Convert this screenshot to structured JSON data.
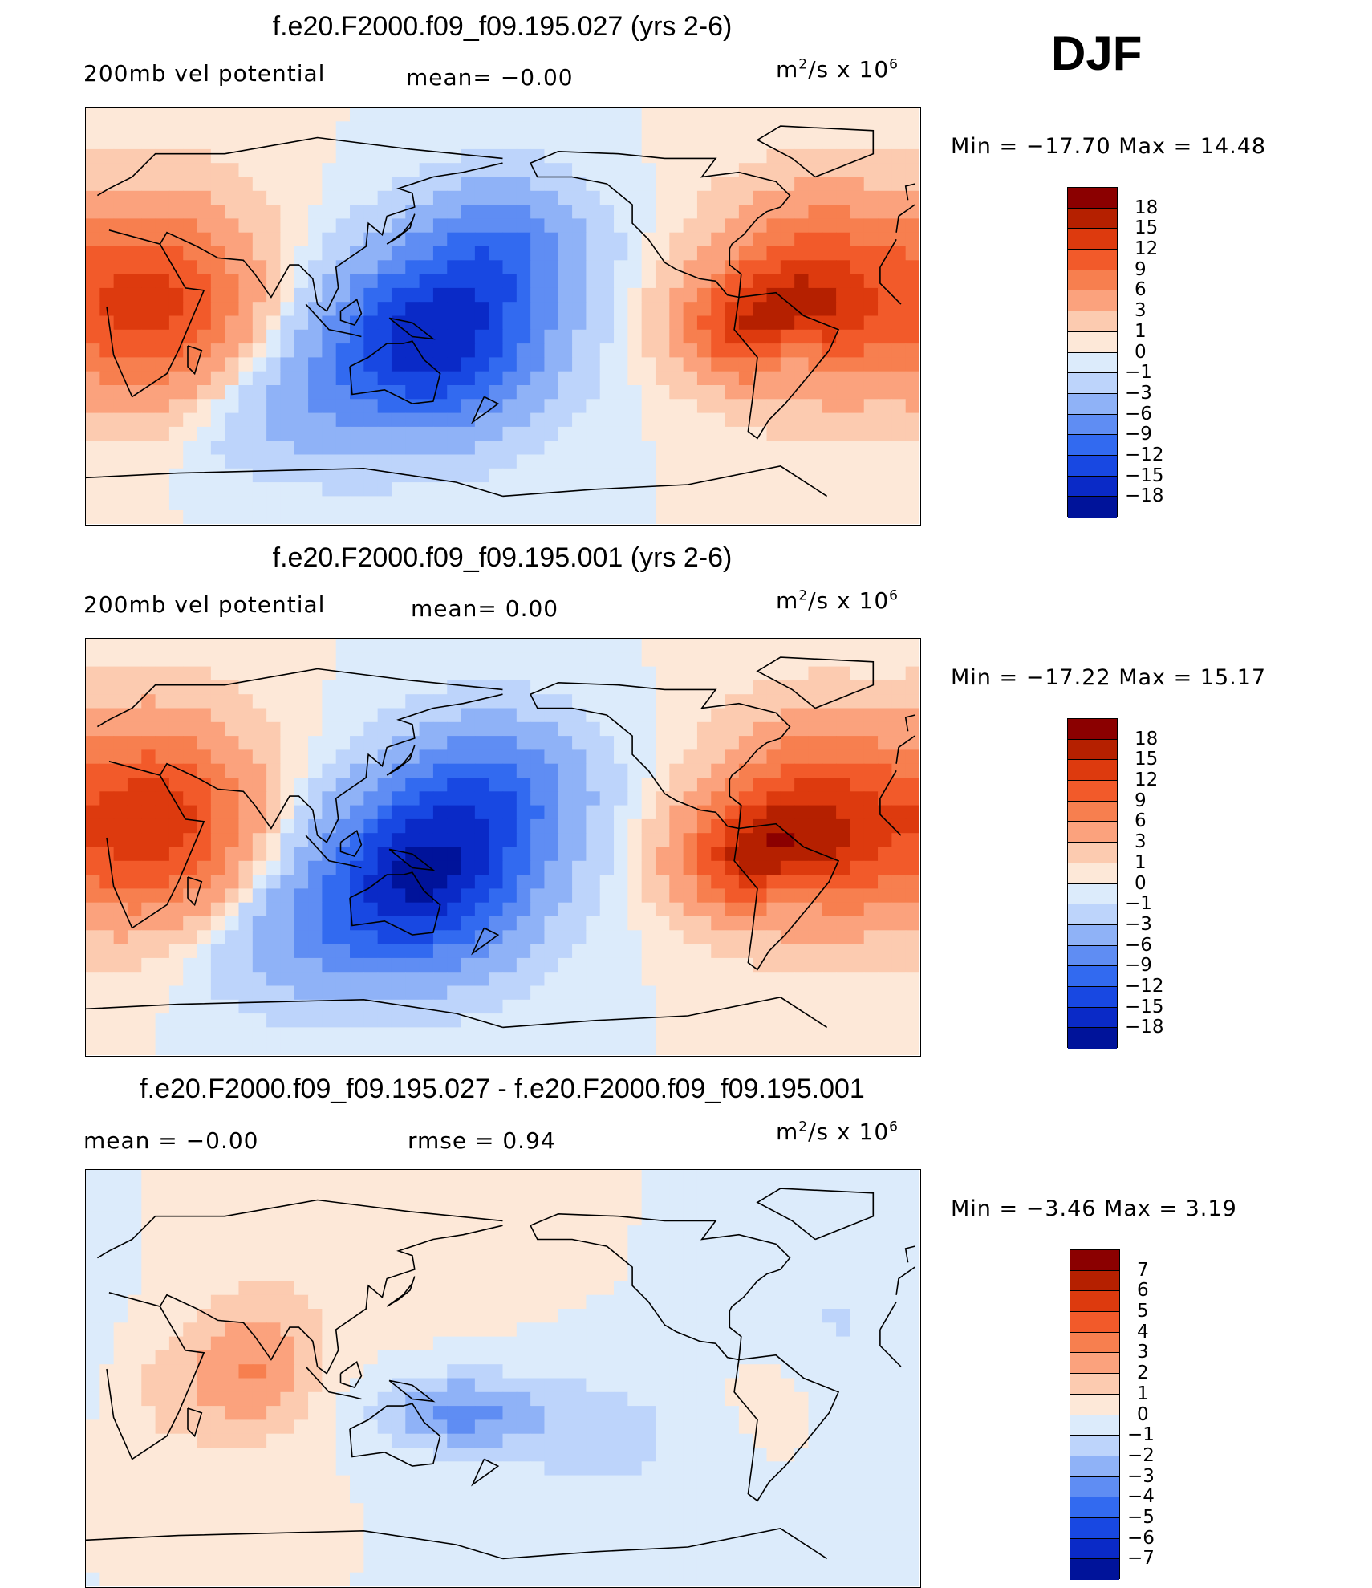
{
  "season": "DJF",
  "panels": [
    {
      "title": "f.e20.F2000.f09_f09.195.027 (yrs 2-6)",
      "left_label": "200mb  vel  potential",
      "center_label": "mean=   −0.00",
      "units_base": "m",
      "units_sup1": "2",
      "units_mid": "/s  x  10",
      "units_sup2": "6",
      "minmax": "Min  =  −17.70  Max  =    14.48",
      "colorbar": {
        "labels": [
          "18",
          "15",
          "12",
          "9",
          "6",
          "3",
          "1",
          "0",
          "−1",
          "−3",
          "−6",
          "−9",
          "−12",
          "−15",
          "−18"
        ],
        "colors": [
          "#8b0000",
          "#b52000",
          "#dd3a0e",
          "#f25a2a",
          "#f77f4f",
          "#fba27d",
          "#fccbb0",
          "#fde8d8",
          "#dcebfb",
          "#bdd4fb",
          "#8fb2f7",
          "#5f8df3",
          "#326af0",
          "#1848e2",
          "#0a2ac7",
          "#00139a"
        ]
      },
      "field": [
        {
          "lon": 30,
          "lat": 5,
          "amp": 13,
          "sx": 30,
          "sy": 30
        },
        {
          "lon": -45,
          "lat": 10,
          "amp": 13,
          "sx": 28,
          "sy": 28
        },
        {
          "lon": -75,
          "lat": -5,
          "amp": 9,
          "sx": 22,
          "sy": 16
        },
        {
          "lon": 150,
          "lat": -10,
          "amp": -17,
          "sx": 32,
          "sy": 25
        },
        {
          "lon": 180,
          "lat": 30,
          "amp": -8,
          "sx": 25,
          "sy": 20
        },
        {
          "lon": -55,
          "lat": -18,
          "amp": -6,
          "sx": 10,
          "sy": 10
        },
        {
          "lon": 90,
          "lat": -40,
          "amp": -4,
          "sx": 40,
          "sy": 20
        }
      ]
    },
    {
      "title": "f.e20.F2000.f09_f09.195.001 (yrs 2-6)",
      "left_label": "200mb  vel  potential",
      "center_label": "mean=    0.00",
      "units_base": "m",
      "units_sup1": "2",
      "units_mid": "/s  x  10",
      "units_sup2": "6",
      "minmax": "Min  =  −17.22  Max  =    15.17",
      "colorbar": {
        "labels": [
          "18",
          "15",
          "12",
          "9",
          "6",
          "3",
          "1",
          "0",
          "−1",
          "−3",
          "−6",
          "−9",
          "−12",
          "−15",
          "−18"
        ],
        "colors": [
          "#8b0000",
          "#b52000",
          "#dd3a0e",
          "#f25a2a",
          "#f77f4f",
          "#fba27d",
          "#fccbb0",
          "#fde8d8",
          "#dcebfb",
          "#bdd4fb",
          "#8fb2f7",
          "#5f8df3",
          "#326af0",
          "#1848e2",
          "#0a2ac7",
          "#00139a"
        ]
      },
      "field": [
        {
          "lon": 30,
          "lat": 10,
          "amp": 14,
          "sx": 30,
          "sy": 30
        },
        {
          "lon": -45,
          "lat": 10,
          "amp": 14,
          "sx": 28,
          "sy": 28
        },
        {
          "lon": -75,
          "lat": -5,
          "amp": 10,
          "sx": 22,
          "sy": 16
        },
        {
          "lon": 145,
          "lat": -12,
          "amp": -17,
          "sx": 32,
          "sy": 25
        },
        {
          "lon": 175,
          "lat": 25,
          "amp": -9,
          "sx": 28,
          "sy": 22
        },
        {
          "lon": -55,
          "lat": -18,
          "amp": -5,
          "sx": 10,
          "sy": 10
        },
        {
          "lon": 100,
          "lat": -40,
          "amp": -5,
          "sx": 40,
          "sy": 20
        }
      ]
    },
    {
      "title": "f.e20.F2000.f09_f09.195.027 - f.e20.F2000.f09_f09.195.001",
      "left_label": "mean  =    −0.00",
      "center_label": "rmse  =     0.94",
      "units_base": "m",
      "units_sup1": "2",
      "units_mid": "/s  x  10",
      "units_sup2": "6",
      "minmax": "Min  =     −3.46  Max  =      3.19",
      "colorbar": {
        "labels": [
          "7",
          "6",
          "5",
          "4",
          "3",
          "2",
          "1",
          "0",
          "−1",
          "−2",
          "−3",
          "−4",
          "−5",
          "−6",
          "−7"
        ],
        "colors": [
          "#8b0000",
          "#b52000",
          "#dd3a0e",
          "#f25a2a",
          "#f77f4f",
          "#fba27d",
          "#fccbb0",
          "#fde8d8",
          "#dcebfb",
          "#bdd4fb",
          "#8fb2f7",
          "#5f8df3",
          "#326af0",
          "#1848e2",
          "#0a2ac7",
          "#00139a"
        ]
      },
      "field": [
        {
          "lon": 75,
          "lat": 5,
          "amp": 2.8,
          "sx": 18,
          "sy": 22
        },
        {
          "lon": 40,
          "lat": -5,
          "amp": 1.4,
          "sx": 18,
          "sy": 20
        },
        {
          "lon": 160,
          "lat": -15,
          "amp": -3.2,
          "sx": 25,
          "sy": 12
        },
        {
          "lon": -140,
          "lat": -25,
          "amp": -1.5,
          "sx": 30,
          "sy": 20
        },
        {
          "lon": -40,
          "lat": 20,
          "amp": -1.2,
          "sx": 30,
          "sy": 25
        },
        {
          "lon": -60,
          "lat": 0,
          "amp": 0.8,
          "sx": 20,
          "sy": 18
        },
        {
          "lon": 120,
          "lat": 45,
          "amp": 0.6,
          "sx": 40,
          "sy": 20
        }
      ]
    }
  ]
}
